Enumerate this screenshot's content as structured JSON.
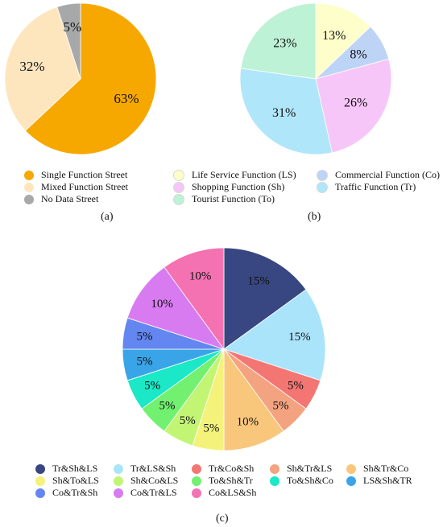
{
  "chart_data": [
    {
      "id": "a",
      "type": "pie",
      "caption": "(a)",
      "start_angle_deg": 0,
      "slices": [
        {
          "name": "Single Function  Street",
          "value": 63,
          "label": "63%",
          "color": "#F7A800"
        },
        {
          "name": "Mixed Function Street",
          "value": 32,
          "label": "32%",
          "color": "#FDE6BE"
        },
        {
          "name": "No Data Street",
          "value": 5,
          "label": "5%",
          "color": "#A6A8A9"
        }
      ]
    },
    {
      "id": "b",
      "type": "pie",
      "caption": "(b)",
      "start_angle_deg": 0,
      "slices": [
        {
          "name": "Life Service Function (LS)",
          "value": 13,
          "label": "13%",
          "color": "#FEFECB"
        },
        {
          "name": "Commercial Function (Co)",
          "value": 8,
          "label": "8%",
          "color": "#BED4F6"
        },
        {
          "name": "Shopping Function (Sh)",
          "value": 26,
          "label": "26%",
          "color": "#F7C6F8"
        },
        {
          "name": "Traffic Function (Tr)",
          "value": 31,
          "label": "31%",
          "color": "#B0E6FA"
        },
        {
          "name": "Tourist Function (To)",
          "value": 23,
          "label": "23%",
          "color": "#BEF2D6"
        }
      ]
    },
    {
      "id": "c",
      "type": "pie",
      "caption": "(c)",
      "start_angle_deg": 0,
      "slices": [
        {
          "name": "Tr&Sh&LS",
          "value": 15,
          "label": "15%",
          "color": "#384781"
        },
        {
          "name": "Tr&LS&Sh",
          "value": 15,
          "label": "15%",
          "color": "#AAE4FB"
        },
        {
          "name": "Tr&Co&Sh",
          "value": 5,
          "label": "5%",
          "color": "#F47673"
        },
        {
          "name": "Sh&Tr&LS",
          "value": 5,
          "label": "5%",
          "color": "#F4A380"
        },
        {
          "name": "Sh&Tr&Co",
          "value": 10,
          "label": "10%",
          "color": "#F9C77B"
        },
        {
          "name": "Sh&To&LS",
          "value": 5,
          "label": "5%",
          "color": "#F4F27A"
        },
        {
          "name": "Sh&Co&LS",
          "value": 5,
          "label": "5%",
          "color": "#C2F574"
        },
        {
          "name": "To&Sh&Tr",
          "value": 5,
          "label": "5%",
          "color": "#72F170"
        },
        {
          "name": "To&Sh&Co",
          "value": 5,
          "label": "5%",
          "color": "#1AE8C6"
        },
        {
          "name": "LS&Sh&TR",
          "value": 5,
          "label": "5%",
          "color": "#3AA4E8"
        },
        {
          "name": "Co&Tr&Sh",
          "value": 5,
          "label": "5%",
          "color": "#6486F0"
        },
        {
          "name": "Co&Tr&LS",
          "value": 10,
          "label": "10%",
          "color": "#D87BF1"
        },
        {
          "name": "Co&LS&Sh",
          "value": 10,
          "label": "10%",
          "color": "#F472B2"
        }
      ]
    }
  ]
}
